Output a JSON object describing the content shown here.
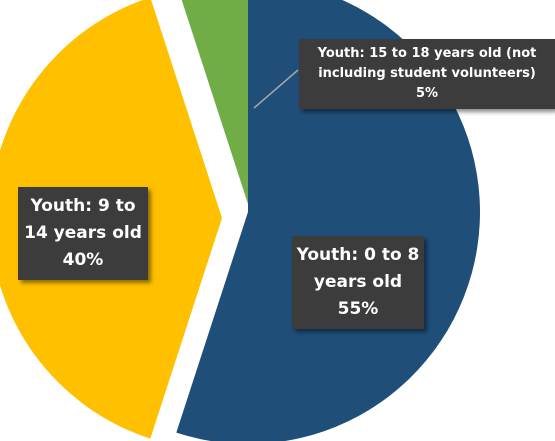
{
  "chart_data": {
    "type": "pie",
    "title": "",
    "categories": [
      "Youth: 0 to 8 years old",
      "Youth: 9 to 14 years old",
      "Youth: 15 to 18 years old (not including student volunteers)"
    ],
    "values": [
      55,
      40,
      5
    ],
    "colors": [
      "#1f4e79",
      "#ffc000",
      "#70ad47"
    ],
    "labels": [
      {
        "lines": [
          "Youth: 0 to 8",
          "years old",
          "55%"
        ]
      },
      {
        "lines": [
          "Youth: 9 to",
          "14 years old",
          "40%"
        ]
      },
      {
        "lines": [
          "Youth: 15 to 18 years old (not",
          "including student volunteers)",
          "5%"
        ]
      }
    ],
    "exploded": true,
    "legend": "none"
  }
}
